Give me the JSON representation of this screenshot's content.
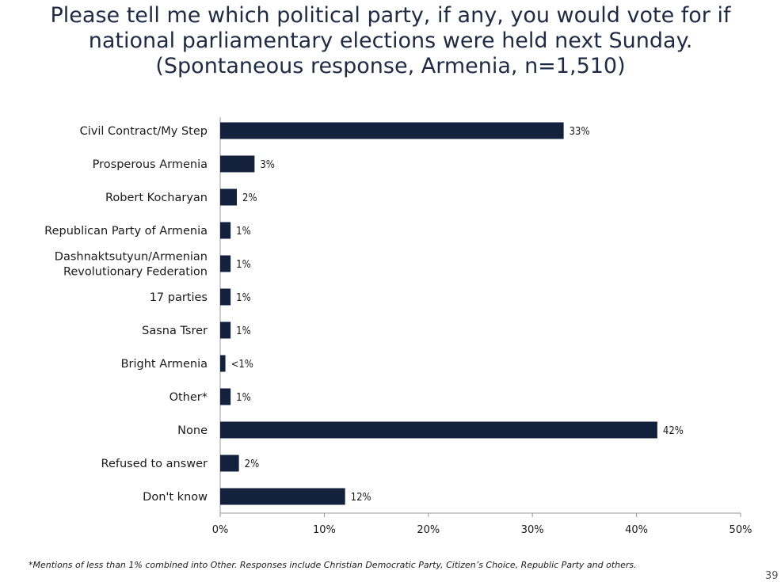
{
  "title_lines": [
    "Please tell me which political party, if any, you would vote for if",
    "national parliamentary elections were held next Sunday.",
    "(Spontaneous response, Armenia, n=1,510)"
  ],
  "footnote": "*Mentions of less than 1% combined into Other. Responses include Christian Democratic Party, Citizen’s Choice, Republic Party and others.",
  "page_number": "39",
  "colors": {
    "bar": "#14213d",
    "axis": "#9a9a9a"
  },
  "chart_data": {
    "type": "bar",
    "orientation": "horizontal",
    "title": "Please tell me which political party, if any, you would vote for if national parliamentary elections were held next Sunday. (Spontaneous response, Armenia, n=1,510)",
    "categories": [
      [
        "Civil Contract/My Step"
      ],
      [
        "Prosperous Armenia"
      ],
      [
        "Robert Kocharyan"
      ],
      [
        "Republican Party of Armenia"
      ],
      [
        "Dashnaktsutyun/Armenian",
        "Revolutionary Federation"
      ],
      [
        "17 parties"
      ],
      [
        "Sasna Tsrer"
      ],
      [
        "Bright Armenia"
      ],
      [
        "Other*"
      ],
      [
        "None"
      ],
      [
        "Refused to answer"
      ],
      [
        "Don't know"
      ]
    ],
    "values": [
      33,
      3.3,
      1.6,
      1,
      1,
      1,
      1,
      0.5,
      1,
      42,
      1.8,
      12
    ],
    "value_labels": [
      "33%",
      "3%",
      "2%",
      "1%",
      "1%",
      "1%",
      "1%",
      "<1%",
      "1%",
      "42%",
      "2%",
      "12%"
    ],
    "xlim": [
      0,
      50
    ],
    "x_ticks": [
      0,
      10,
      20,
      30,
      40,
      50
    ],
    "x_tick_labels": [
      "0%",
      "10%",
      "20%",
      "30%",
      "40%",
      "50%"
    ],
    "grid": false,
    "legend": "none"
  }
}
